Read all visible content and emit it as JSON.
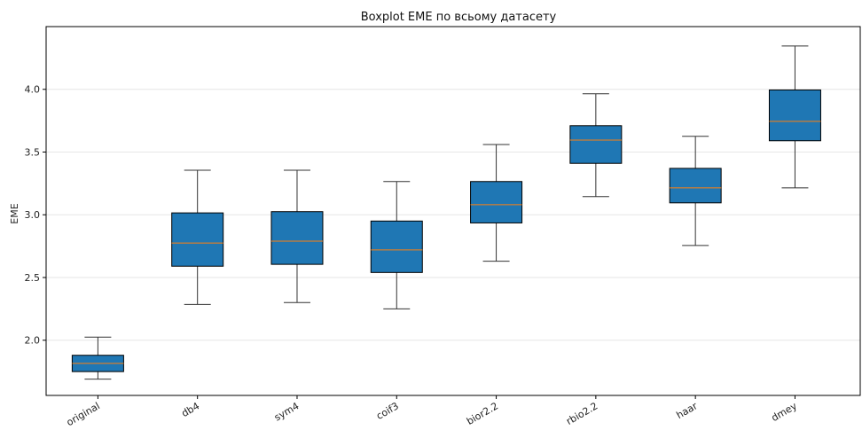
{
  "chart_data": {
    "type": "boxplot",
    "title": "Boxplot EME по всьому датасету",
    "xlabel": "",
    "ylabel": "EME",
    "ylim": [
      1.56,
      4.5
    ],
    "yticks": [
      "2.0",
      "2.5",
      "3.0",
      "3.5",
      "4.0"
    ],
    "grid": "horizontal",
    "categories": [
      "original",
      "db4",
      "sym4",
      "coif3",
      "bior2.2",
      "rbio2.2",
      "haar",
      "dmey"
    ],
    "boxes": [
      {
        "label": "original",
        "whislo": 1.69,
        "q1": 1.75,
        "median": 1.815,
        "q3": 1.88,
        "whishi": 2.025
      },
      {
        "label": "db4",
        "whislo": 2.285,
        "q1": 2.59,
        "median": 2.775,
        "q3": 3.015,
        "whishi": 3.355
      },
      {
        "label": "sym4",
        "whislo": 2.3,
        "q1": 2.605,
        "median": 2.79,
        "q3": 3.025,
        "whishi": 3.355
      },
      {
        "label": "coif3",
        "whislo": 2.25,
        "q1": 2.54,
        "median": 2.72,
        "q3": 2.95,
        "whishi": 3.265
      },
      {
        "label": "bior2.2",
        "whislo": 2.63,
        "q1": 2.935,
        "median": 3.08,
        "q3": 3.265,
        "whishi": 3.56
      },
      {
        "label": "rbio2.2",
        "whislo": 3.145,
        "q1": 3.41,
        "median": 3.595,
        "q3": 3.71,
        "whishi": 3.965
      },
      {
        "label": "haar",
        "whislo": 2.755,
        "q1": 3.095,
        "median": 3.215,
        "q3": 3.37,
        "whishi": 3.625
      },
      {
        "label": "dmey",
        "whislo": 3.215,
        "q1": 3.59,
        "median": 3.745,
        "q3": 3.995,
        "whishi": 4.345
      }
    ],
    "colors": {
      "box_fill": "#1f77b4",
      "median": "#ff7f0e",
      "whisker": "#333333",
      "grid": "#e6e6e6",
      "axis": "#000000"
    }
  }
}
